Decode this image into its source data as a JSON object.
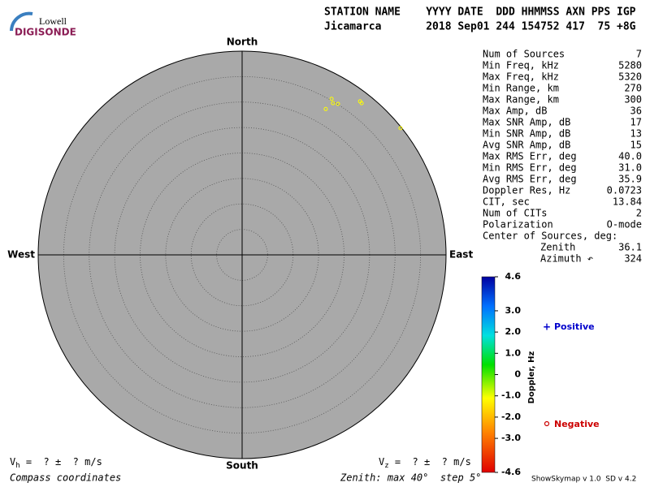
{
  "header": {
    "logo_top": "Lowell",
    "logo_bottom": "DIGISONDE",
    "labels": "STATION NAME    YYYY DATE  DDD HHMMSS AXN PPS IGP",
    "values": "Jicamarca       2018 Sep01 244 154752 417  75 +8G"
  },
  "skymap": {
    "north": "North",
    "south": "South",
    "east": "East",
    "west": "West",
    "rlim": [
      0,
      40
    ],
    "rticks": [
      5,
      10,
      15,
      20,
      25,
      30,
      35,
      40
    ],
    "color": "#ffff00",
    "sources": [
      {
        "zenith": 35.3,
        "azimuth": 29.8
      },
      {
        "zenith": 34.7,
        "azimuth": 30.9
      },
      {
        "zenith": 35.1,
        "azimuth": 32.4
      },
      {
        "zenith": 33.0,
        "azimuth": 29.8
      },
      {
        "zenith": 38.0,
        "azimuth": 37.5
      },
      {
        "zenith": 37.9,
        "azimuth": 38.2
      },
      {
        "zenith": 39.8,
        "azimuth": 51.3
      }
    ],
    "vh": {
      "symbol": "V",
      "sub": "h",
      "rest": " =  ? ±  ? m/s"
    },
    "vz": {
      "symbol": "V",
      "sub": "z",
      "rest": " =  ? ±  ? m/s"
    },
    "note_left": "Compass coordinates",
    "note_right": "Zenith: max 40°  step 5°"
  },
  "stats": {
    "rows": [
      [
        "Num of Sources",
        "7"
      ],
      [
        "Min Freq, kHz",
        "5280"
      ],
      [
        "Max Freq, kHz",
        "5320"
      ],
      [
        "Min Range, km",
        "270"
      ],
      [
        "Max Range, km",
        "300"
      ],
      [
        "Max Amp, dB",
        "36"
      ],
      [
        "Max SNR Amp, dB",
        "17"
      ],
      [
        "Min SNR Amp, dB",
        "13"
      ],
      [
        "Avg SNR Amp, dB",
        "15"
      ],
      [
        "Max RMS Err, deg",
        "40.0"
      ],
      [
        "Min RMS Err, deg",
        "31.0"
      ],
      [
        "Avg RMS Err, deg",
        "35.9"
      ],
      [
        "Doppler Res, Hz",
        "0.0723"
      ],
      [
        "CIT, sec",
        "13.84"
      ],
      [
        "Num of CITs",
        "2"
      ],
      [
        "Polarization",
        "O-mode"
      ]
    ],
    "center_title": "Center of Sources, deg:",
    "center_rows": [
      [
        "Zenith",
        "36.1"
      ],
      [
        "Azimuth ↶",
        "324"
      ]
    ]
  },
  "colorbar": {
    "label": "Doppler, Hz",
    "lim": [
      -4.6,
      4.6
    ],
    "ticks": [
      4.6,
      {
        "value": 3,
        "label": "3.0"
      },
      {
        "value": 2,
        "label": "2.0"
      },
      {
        "value": 1,
        "label": "1.0"
      },
      0,
      {
        "value": -1,
        "label": "-1.0"
      },
      {
        "value": -2,
        "label": "-2.0"
      },
      {
        "value": -3,
        "label": "-3.0"
      },
      -4.6
    ],
    "positive": "Positive",
    "negative": "Negative"
  },
  "footer": "ShowSkymap v 1.0  SD v 4.2"
}
